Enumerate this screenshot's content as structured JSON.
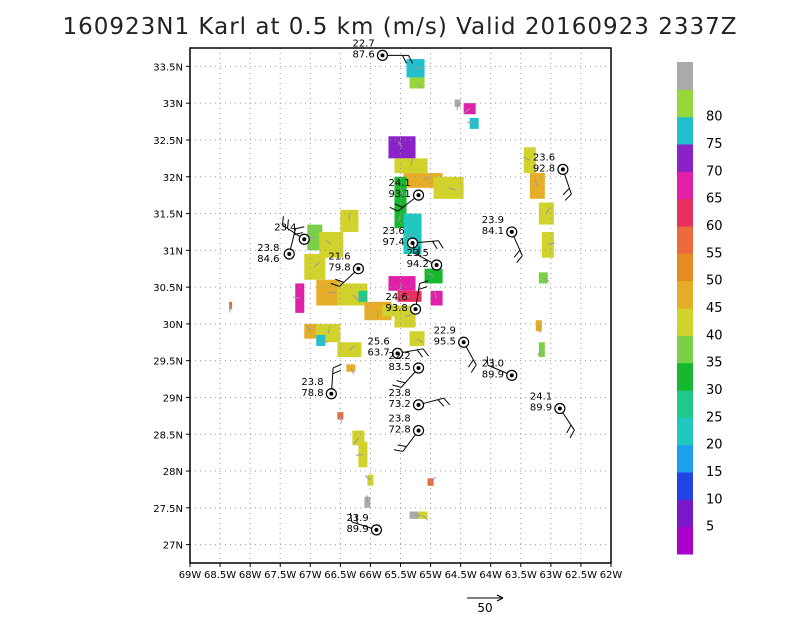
{
  "title": "160923N1 Karl at 0.5 km (m/s) Valid 20160923 2337Z",
  "chart_data": {
    "type": "heatmap",
    "title": "160923N1 Karl at 0.5 km (m/s) Valid 20160923 2337Z",
    "xlim": [
      -69,
      -62
    ],
    "ylim": [
      26.75,
      33.75
    ],
    "grid": true,
    "x_ticks": [
      {
        "v": -69,
        "label": "69W"
      },
      {
        "v": -68.5,
        "label": "68.5W"
      },
      {
        "v": -68,
        "label": "68W"
      },
      {
        "v": -67.5,
        "label": "67.5W"
      },
      {
        "v": -67,
        "label": "67W"
      },
      {
        "v": -66.5,
        "label": "66.5W"
      },
      {
        "v": -66,
        "label": "66W"
      },
      {
        "v": -65.5,
        "label": "65.5W"
      },
      {
        "v": -65,
        "label": "65W"
      },
      {
        "v": -64.5,
        "label": "64.5W"
      },
      {
        "v": -64,
        "label": "64W"
      },
      {
        "v": -63.5,
        "label": "63.5W"
      },
      {
        "v": -63,
        "label": "63W"
      },
      {
        "v": -62.5,
        "label": "62.5W"
      },
      {
        "v": -62,
        "label": "62W"
      }
    ],
    "y_ticks": [
      {
        "v": 27,
        "label": "27N"
      },
      {
        "v": 27.5,
        "label": "27.5N"
      },
      {
        "v": 28,
        "label": "28N"
      },
      {
        "v": 28.5,
        "label": "28.5N"
      },
      {
        "v": 29,
        "label": "29N"
      },
      {
        "v": 29.5,
        "label": "29.5N"
      },
      {
        "v": 30,
        "label": "30N"
      },
      {
        "v": 30.5,
        "label": "30.5N"
      },
      {
        "v": 31,
        "label": "31N"
      },
      {
        "v": 31.5,
        "label": "31.5N"
      },
      {
        "v": 32,
        "label": "32N"
      },
      {
        "v": 32.5,
        "label": "32.5N"
      },
      {
        "v": 33,
        "label": "33N"
      },
      {
        "v": 33.5,
        "label": "33.5N"
      }
    ],
    "colorbar": {
      "bins": [
        {
          "color": "#aa00cc",
          "label": "5"
        },
        {
          "color": "#7a18c8",
          "label": "10"
        },
        {
          "color": "#2244e6",
          "label": "15"
        },
        {
          "color": "#1fa0ee",
          "label": "20"
        },
        {
          "color": "#20c8c0",
          "label": "25"
        },
        {
          "color": "#22c88a",
          "label": "30"
        },
        {
          "color": "#16b82e",
          "label": "35"
        },
        {
          "color": "#7ad048",
          "label": "40"
        },
        {
          "color": "#d2d22c",
          "label": "45"
        },
        {
          "color": "#e6ae28",
          "label": "50"
        },
        {
          "color": "#e68a24",
          "label": "55"
        },
        {
          "color": "#ea6a3c",
          "label": "60"
        },
        {
          "color": "#e83060",
          "label": "65"
        },
        {
          "color": "#e020a8",
          "label": "70"
        },
        {
          "color": "#8a22c8",
          "label": "75"
        },
        {
          "color": "#22c0cc",
          "label": "80"
        },
        {
          "color": "#96d83c",
          "label": ""
        },
        {
          "color": "#aaaaaa",
          "label": ""
        }
      ]
    },
    "field_cells": [
      {
        "lon": -65.4,
        "lat": 33.35,
        "w": 0.3,
        "h": 0.25,
        "v": 75
      },
      {
        "lon": -65.35,
        "lat": 33.2,
        "w": 0.25,
        "h": 0.15,
        "v": 80
      },
      {
        "lon": -64.6,
        "lat": 32.95,
        "w": 0.1,
        "h": 0.1,
        "v": 90
      },
      {
        "lon": -64.45,
        "lat": 32.85,
        "w": 0.2,
        "h": 0.15,
        "v": 65
      },
      {
        "lon": -64.35,
        "lat": 32.65,
        "w": 0.15,
        "h": 0.15,
        "v": 75
      },
      {
        "lon": -65.7,
        "lat": 32.25,
        "w": 0.45,
        "h": 0.3,
        "v": 70
      },
      {
        "lon": -65.6,
        "lat": 32.05,
        "w": 0.55,
        "h": 0.2,
        "v": 40
      },
      {
        "lon": -65.45,
        "lat": 31.85,
        "w": 0.65,
        "h": 0.2,
        "v": 45
      },
      {
        "lon": -64.95,
        "lat": 31.7,
        "w": 0.5,
        "h": 0.3,
        "v": 40
      },
      {
        "lon": -65.6,
        "lat": 31.65,
        "w": 0.2,
        "h": 0.35,
        "v": 30
      },
      {
        "lon": -65.6,
        "lat": 31.3,
        "w": 0.2,
        "h": 0.35,
        "v": 30
      },
      {
        "lon": -65.45,
        "lat": 30.95,
        "w": 0.3,
        "h": 0.55,
        "v": 20
      },
      {
        "lon": -63.45,
        "lat": 32.05,
        "w": 0.2,
        "h": 0.35,
        "v": 40
      },
      {
        "lon": -63.35,
        "lat": 31.7,
        "w": 0.25,
        "h": 0.35,
        "v": 45
      },
      {
        "lon": -63.2,
        "lat": 31.35,
        "w": 0.25,
        "h": 0.3,
        "v": 40
      },
      {
        "lon": -63.15,
        "lat": 30.9,
        "w": 0.2,
        "h": 0.35,
        "v": 40
      },
      {
        "lon": -63.2,
        "lat": 30.55,
        "w": 0.15,
        "h": 0.15,
        "v": 35
      },
      {
        "lon": -63.25,
        "lat": 29.9,
        "w": 0.1,
        "h": 0.15,
        "v": 45
      },
      {
        "lon": -63.2,
        "lat": 29.55,
        "w": 0.1,
        "h": 0.2,
        "v": 35
      },
      {
        "lon": -67.05,
        "lat": 31.0,
        "w": 0.25,
        "h": 0.35,
        "v": 35
      },
      {
        "lon": -66.85,
        "lat": 30.9,
        "w": 0.4,
        "h": 0.35,
        "v": 40
      },
      {
        "lon": -66.5,
        "lat": 31.25,
        "w": 0.3,
        "h": 0.3,
        "v": 40
      },
      {
        "lon": -67.1,
        "lat": 30.6,
        "w": 0.35,
        "h": 0.35,
        "v": 40
      },
      {
        "lon": -66.9,
        "lat": 30.25,
        "w": 0.4,
        "h": 0.35,
        "v": 45
      },
      {
        "lon": -66.55,
        "lat": 30.25,
        "w": 0.5,
        "h": 0.3,
        "v": 40
      },
      {
        "lon": -66.1,
        "lat": 30.05,
        "w": 0.45,
        "h": 0.25,
        "v": 45
      },
      {
        "lon": -66.2,
        "lat": 30.3,
        "w": 0.15,
        "h": 0.15,
        "v": 25
      },
      {
        "lon": -67.25,
        "lat": 30.15,
        "w": 0.15,
        "h": 0.4,
        "v": 65
      },
      {
        "lon": -67.1,
        "lat": 29.8,
        "w": 0.2,
        "h": 0.2,
        "v": 45
      },
      {
        "lon": -66.9,
        "lat": 29.75,
        "w": 0.4,
        "h": 0.25,
        "v": 40
      },
      {
        "lon": -66.55,
        "lat": 29.55,
        "w": 0.4,
        "h": 0.2,
        "v": 40
      },
      {
        "lon": -66.9,
        "lat": 29.7,
        "w": 0.15,
        "h": 0.15,
        "v": 75
      },
      {
        "lon": -66.4,
        "lat": 29.35,
        "w": 0.15,
        "h": 0.1,
        "v": 45
      },
      {
        "lon": -65.7,
        "lat": 30.45,
        "w": 0.45,
        "h": 0.2,
        "v": 65
      },
      {
        "lon": -65.55,
        "lat": 30.3,
        "w": 0.4,
        "h": 0.15,
        "v": 60
      },
      {
        "lon": -65.1,
        "lat": 30.55,
        "w": 0.3,
        "h": 0.2,
        "v": 30
      },
      {
        "lon": -65.0,
        "lat": 30.25,
        "w": 0.2,
        "h": 0.2,
        "v": 65
      },
      {
        "lon": -65.8,
        "lat": 30.1,
        "w": 0.2,
        "h": 0.15,
        "v": 40
      },
      {
        "lon": -65.6,
        "lat": 29.95,
        "w": 0.35,
        "h": 0.3,
        "v": 40
      },
      {
        "lon": -65.35,
        "lat": 29.7,
        "w": 0.25,
        "h": 0.2,
        "v": 40
      },
      {
        "lon": -66.55,
        "lat": 28.7,
        "w": 0.1,
        "h": 0.1,
        "v": 55
      },
      {
        "lon": -66.3,
        "lat": 28.35,
        "w": 0.2,
        "h": 0.2,
        "v": 40
      },
      {
        "lon": -66.2,
        "lat": 28.05,
        "w": 0.15,
        "h": 0.35,
        "v": 40
      },
      {
        "lon": -66.05,
        "lat": 27.8,
        "w": 0.1,
        "h": 0.15,
        "v": 40
      },
      {
        "lon": -66.1,
        "lat": 27.5,
        "w": 0.1,
        "h": 0.15,
        "v": 90
      },
      {
        "lon": -65.05,
        "lat": 27.8,
        "w": 0.1,
        "h": 0.1,
        "v": 55
      },
      {
        "lon": -65.35,
        "lat": 27.35,
        "w": 0.15,
        "h": 0.1,
        "v": 90
      },
      {
        "lon": -65.2,
        "lat": 27.35,
        "w": 0.15,
        "h": 0.1,
        "v": 40
      },
      {
        "lon": -68.35,
        "lat": 30.2,
        "w": 0.05,
        "h": 0.1,
        "v": 55
      }
    ],
    "observations": [
      {
        "lon": -65.8,
        "lat": 33.65,
        "v": "22.7",
        "p": "87.6",
        "dx": -30,
        "dy": -6
      },
      {
        "lon": -62.8,
        "lat": 32.1,
        "v": "23.6",
        "p": "92.8",
        "dx": -30,
        "dy": -6
      },
      {
        "lon": -65.2,
        "lat": 31.75,
        "v": "24.1",
        "p": "93.1",
        "dx": -30,
        "dy": -6
      },
      {
        "lon": -67.1,
        "lat": 31.15,
        "v": "23.4",
        "p": "",
        "dx": -30,
        "dy": -6
      },
      {
        "lon": -67.35,
        "lat": 30.95,
        "v": "23.8",
        "p": "84.6",
        "dx": -32,
        "dy": 0
      },
      {
        "lon": -65.3,
        "lat": 31.1,
        "v": "23.6",
        "p": "97.4",
        "dx": -30,
        "dy": -6
      },
      {
        "lon": -63.65,
        "lat": 31.25,
        "v": "23.9",
        "p": "84.1",
        "dx": -30,
        "dy": -6
      },
      {
        "lon": -66.2,
        "lat": 30.75,
        "v": "21.6",
        "p": "79.8",
        "dx": -30,
        "dy": -6
      },
      {
        "lon": -64.9,
        "lat": 30.8,
        "v": "23.5",
        "p": "94.2",
        "dx": -30,
        "dy": -6
      },
      {
        "lon": -65.25,
        "lat": 30.2,
        "v": "24.6",
        "p": "93.8",
        "dx": -30,
        "dy": -6
      },
      {
        "lon": -65.55,
        "lat": 29.6,
        "v": "25.6",
        "p": "63.7",
        "dx": -30,
        "dy": -6
      },
      {
        "lon": -64.45,
        "lat": 29.75,
        "v": "22.9",
        "p": "95.5",
        "dx": -30,
        "dy": -6
      },
      {
        "lon": -65.2,
        "lat": 29.4,
        "v": "22.2",
        "p": "83.5",
        "dx": -30,
        "dy": -6
      },
      {
        "lon": -63.65,
        "lat": 29.3,
        "v": "23.0",
        "p": "89.9",
        "dx": -30,
        "dy": -6
      },
      {
        "lon": -66.65,
        "lat": 29.05,
        "v": "23.8",
        "p": "78.8",
        "dx": -30,
        "dy": -6
      },
      {
        "lon": -65.2,
        "lat": 28.9,
        "v": "23.8",
        "p": "73.2",
        "dx": -30,
        "dy": -6
      },
      {
        "lon": -62.85,
        "lat": 28.85,
        "v": "24.1",
        "p": "89.9",
        "dx": -30,
        "dy": -6
      },
      {
        "lon": -65.2,
        "lat": 28.55,
        "v": "23.8",
        "p": "72.8",
        "dx": -30,
        "dy": -6
      },
      {
        "lon": -65.9,
        "lat": 27.2,
        "v": "23.9",
        "p": "89.9",
        "dx": -30,
        "dy": -6
      }
    ],
    "scale_vector": {
      "label": "50"
    }
  }
}
